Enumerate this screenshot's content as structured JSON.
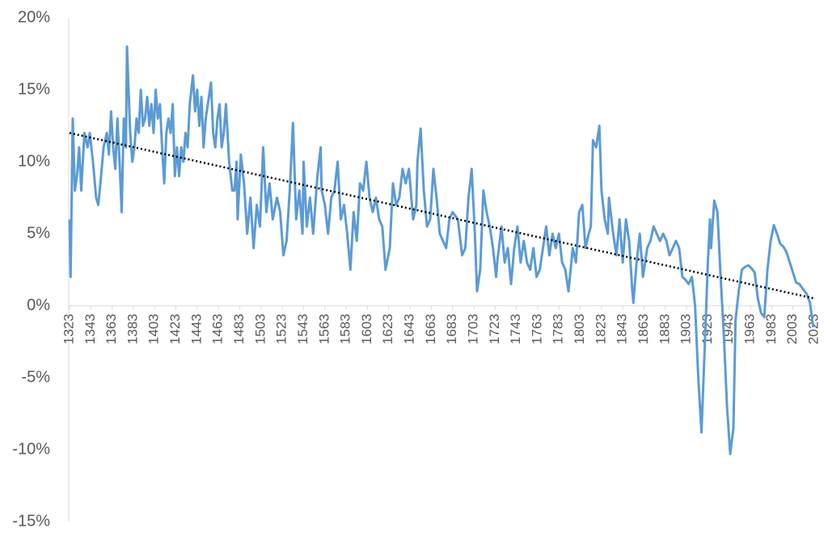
{
  "chart_data": {
    "type": "line",
    "xlim": [
      1323,
      2023
    ],
    "xticks": [
      1323,
      1343,
      1363,
      1383,
      1403,
      1423,
      1443,
      1463,
      1483,
      1503,
      1523,
      1543,
      1563,
      1583,
      1603,
      1623,
      1643,
      1663,
      1683,
      1703,
      1723,
      1743,
      1763,
      1783,
      1803,
      1823,
      1843,
      1863,
      1883,
      1903,
      1923,
      1943,
      1963,
      1983,
      2003,
      2023
    ],
    "ylim": [
      -15,
      20
    ],
    "yticks": [
      {
        "value": -15,
        "label": "-15%"
      },
      {
        "value": -10,
        "label": "-10%"
      },
      {
        "value": -5,
        "label": "-5%"
      },
      {
        "value": 0,
        "label": "0%"
      },
      {
        "value": 5,
        "label": "5%"
      },
      {
        "value": 10,
        "label": "10%"
      },
      {
        "value": 15,
        "label": "15%"
      },
      {
        "value": 20,
        "label": "20%"
      }
    ],
    "grid": false,
    "series": [
      {
        "color": "#5b9bd5",
        "line_style": "solid",
        "x": [
          1323,
          1324,
          1326,
          1328,
          1330,
          1332,
          1334,
          1337,
          1340,
          1342,
          1345,
          1348,
          1350,
          1352,
          1355,
          1358,
          1360,
          1362,
          1364,
          1366,
          1368,
          1370,
          1372,
          1374,
          1376,
          1377,
          1380,
          1382,
          1384,
          1386,
          1388,
          1390,
          1392,
          1394,
          1396,
          1398,
          1400,
          1402,
          1404,
          1406,
          1408,
          1410,
          1412,
          1414,
          1416,
          1418,
          1420,
          1422,
          1424,
          1426,
          1428,
          1430,
          1432,
          1434,
          1436,
          1439,
          1441,
          1443,
          1445,
          1447,
          1449,
          1451,
          1453,
          1456,
          1458,
          1460,
          1462,
          1464,
          1466,
          1468,
          1470,
          1473,
          1476,
          1478,
          1480,
          1481,
          1484,
          1487,
          1490,
          1493,
          1496,
          1499,
          1502,
          1505,
          1508,
          1511,
          1514,
          1518,
          1521,
          1524,
          1527,
          1530,
          1533,
          1536,
          1539,
          1542,
          1543,
          1546,
          1549,
          1552,
          1556,
          1559,
          1560,
          1563,
          1566,
          1569,
          1572,
          1575,
          1578,
          1581,
          1584,
          1587,
          1590,
          1593,
          1596,
          1599,
          1602,
          1605,
          1608,
          1611,
          1614,
          1617,
          1620,
          1624,
          1627,
          1630,
          1633,
          1636,
          1639,
          1642,
          1646,
          1649,
          1650,
          1653,
          1656,
          1659,
          1662,
          1665,
          1668,
          1671,
          1674,
          1677,
          1680,
          1683,
          1688,
          1692,
          1695,
          1698,
          1701,
          1704,
          1706,
          1709,
          1712,
          1715,
          1718,
          1721,
          1724,
          1725,
          1729,
          1732,
          1735,
          1738,
          1741,
          1744,
          1747,
          1750,
          1753,
          1756,
          1759,
          1762,
          1765,
          1768,
          1771,
          1774,
          1777,
          1780,
          1783,
          1786,
          1789,
          1792,
          1796,
          1799,
          1802,
          1805,
          1808,
          1811,
          1813,
          1815,
          1818,
          1821,
          1823,
          1826,
          1829,
          1830,
          1834,
          1837,
          1840,
          1843,
          1846,
          1849,
          1852,
          1853,
          1856,
          1859,
          1862,
          1866,
          1869,
          1872,
          1875,
          1878,
          1881,
          1884,
          1887,
          1890,
          1893,
          1896,
          1899,
          1902,
          1905,
          1908,
          1911,
          1914,
          1917,
          1920,
          1923,
          1925,
          1926,
          1929,
          1932,
          1935,
          1938,
          1941,
          1944,
          1947,
          1949,
          1952,
          1955,
          1958,
          1961,
          1964,
          1967,
          1970,
          1973,
          1976,
          1979,
          1982,
          1985,
          1988,
          1991,
          1994,
          1997,
          2000,
          2003,
          2006,
          2009,
          2012,
          2016,
          2019,
          2022
        ],
        "values": [
          6,
          2,
          13,
          8,
          9,
          11,
          8,
          12,
          11,
          12,
          10,
          7.5,
          7,
          8.5,
          11,
          12,
          10.5,
          13.5,
          11,
          9.5,
          13,
          10,
          6.5,
          13,
          11,
          18,
          12,
          10,
          11,
          13,
          12,
          15,
          12.5,
          13,
          14.5,
          12.5,
          14,
          12,
          15,
          13,
          14,
          11,
          8.5,
          12,
          13,
          12,
          14,
          9,
          11,
          9,
          11,
          10,
          12,
          11,
          14,
          16,
          13.5,
          15,
          12.5,
          14.5,
          11,
          13,
          14,
          15.5,
          12,
          11,
          13,
          14,
          11,
          12,
          14,
          10,
          8,
          8,
          10,
          6,
          10.5,
          8.5,
          5,
          7.5,
          4,
          7,
          5.5,
          11,
          6.5,
          8.5,
          6,
          7.5,
          6.5,
          3.5,
          4.5,
          8,
          12.7,
          6,
          8,
          5,
          10,
          5.5,
          7.5,
          5,
          9,
          11,
          8,
          7,
          5,
          7.5,
          8,
          10,
          6,
          7,
          5,
          2.5,
          6.5,
          4.5,
          8.5,
          8,
          10,
          7.5,
          6.5,
          7.5,
          6,
          5.5,
          2.5,
          4,
          8.5,
          7,
          7.5,
          9.5,
          8.5,
          9.5,
          6,
          7,
          10,
          12.3,
          8,
          5.5,
          6,
          9.5,
          7.5,
          5,
          4.5,
          4,
          6,
          6.5,
          6,
          3.5,
          4,
          7.5,
          9.5,
          5,
          1,
          2.5,
          8,
          6.5,
          5.5,
          4,
          2,
          3,
          5.5,
          3,
          4,
          1.5,
          4,
          5.5,
          3,
          4.5,
          3,
          2.5,
          4,
          2,
          2.5,
          4,
          5.5,
          3.5,
          5,
          4,
          5,
          3,
          2.5,
          1,
          4,
          3,
          6.5,
          7,
          4,
          5,
          5.5,
          11.5,
          11,
          12.5,
          8,
          6,
          5,
          7.5,
          5,
          3.5,
          6,
          3,
          6,
          4.5,
          1,
          0.2,
          3,
          5,
          2,
          4,
          4.5,
          5.5,
          5,
          4.5,
          5,
          4.5,
          3.5,
          4,
          4.5,
          4,
          2,
          1.8,
          1.5,
          2,
          0,
          -5,
          -8.8,
          -3,
          3,
          6,
          4,
          7.3,
          6.5,
          2,
          -2,
          -7,
          -10.3,
          -8.5,
          -1,
          1,
          2.5,
          2.7,
          2.8,
          2.6,
          2.3,
          0.5,
          -0.5,
          -0.8,
          2.5,
          4.5,
          5.6,
          5,
          4.3,
          4.1,
          3.7,
          3,
          2.3,
          1.6,
          1.5,
          1.2,
          0.8,
          0.2,
          -1.5
        ]
      },
      {
        "color": "#000000",
        "line_style": "dotted",
        "x": [
          1323,
          2023
        ],
        "values": [
          12.0,
          0.5
        ]
      }
    ]
  }
}
